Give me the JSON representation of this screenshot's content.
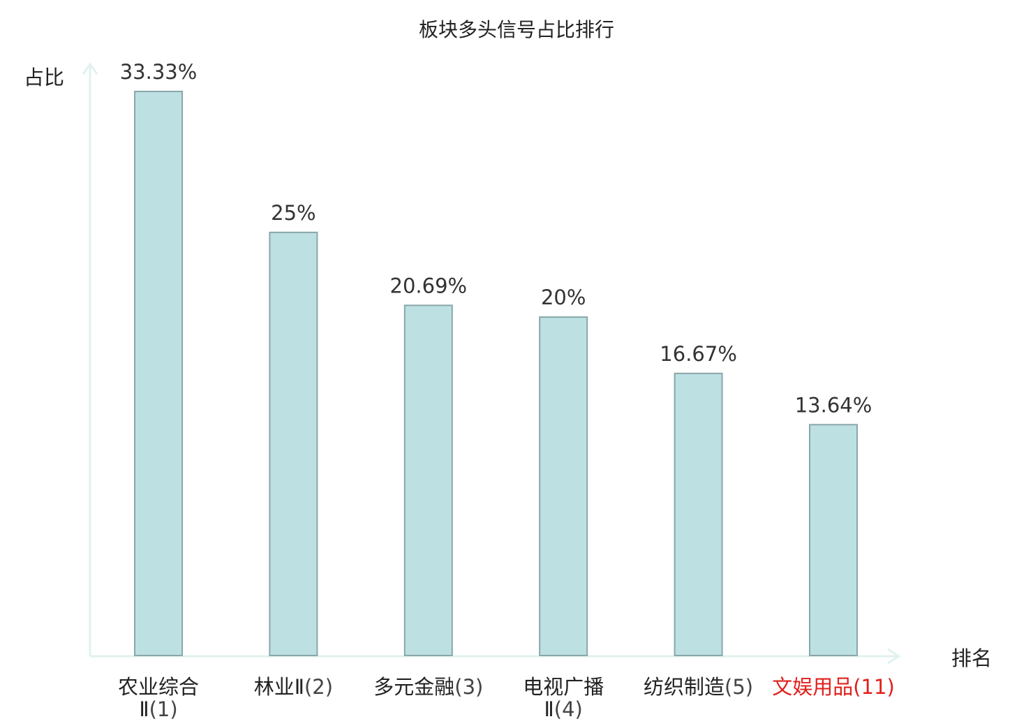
{
  "chart_data": {
    "type": "bar",
    "title": "板块多头信号占比排行",
    "xlabel": "排名",
    "ylabel": "占比",
    "ylim": [
      0,
      33.33
    ],
    "grid": false,
    "categories": [
      {
        "name": "农业综合",
        "name_line2": "Ⅱ",
        "rank": "(1)",
        "highlight": false
      },
      {
        "name": "林业Ⅱ",
        "name_line2": "",
        "rank": "(2)",
        "highlight": false
      },
      {
        "name": "多元金融",
        "name_line2": "",
        "rank": "(3)",
        "highlight": false
      },
      {
        "name": "电视广播",
        "name_line2": "Ⅱ",
        "rank": "(4)",
        "highlight": false
      },
      {
        "name": "纺织制造",
        "name_line2": "",
        "rank": "(5)",
        "highlight": false
      },
      {
        "name": "文娱用品",
        "name_line2": "",
        "rank": "(11)",
        "highlight": true
      }
    ],
    "values": [
      33.33,
      25,
      20.69,
      20,
      16.67,
      13.64
    ],
    "value_labels": [
      "33.33%",
      "25%",
      "20.69%",
      "20%",
      "16.67%",
      "13.64%"
    ],
    "colors": {
      "bar_fill": "#bde0e3",
      "bar_stroke": "#8aa7a9",
      "axis": "#e0f2ef",
      "text": "#222222",
      "rank_text": "#444444",
      "highlight": "#e0201c"
    }
  }
}
